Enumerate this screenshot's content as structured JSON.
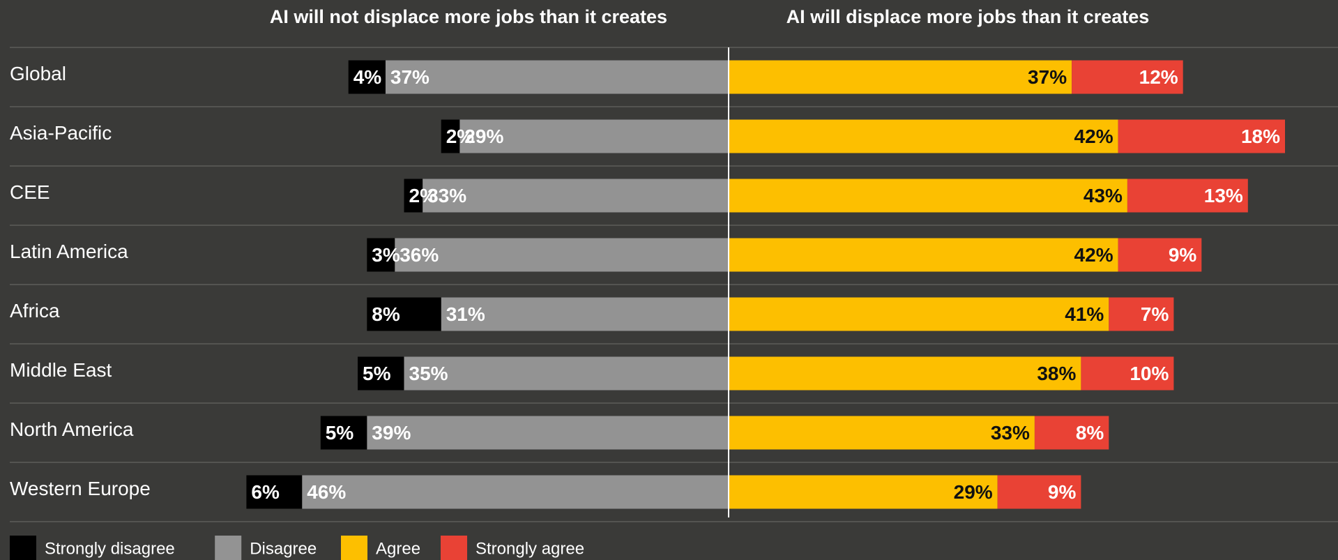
{
  "chart_data": {
    "type": "bar",
    "orientation": "horizontal-diverging",
    "group_headers": {
      "negative": "AI will not displace more jobs than it creates",
      "positive": "AI will displace more jobs than it creates"
    },
    "categories": [
      "Global",
      "Asia-Pacific",
      "CEE",
      "Latin America",
      "Africa",
      "Middle East",
      "North America",
      "Western Europe"
    ],
    "series": [
      {
        "name": "Strongly disagree",
        "side": "negative",
        "color": "#000000",
        "label_color": "#ffffff",
        "values": [
          4,
          2,
          2,
          3,
          8,
          5,
          5,
          6
        ],
        "labels": [
          "4%",
          "2%",
          "2%",
          "3%",
          "8%",
          "5%",
          "5%",
          "6%"
        ]
      },
      {
        "name": "Disagree",
        "side": "negative",
        "color": "#939393",
        "label_color": "#ffffff",
        "values": [
          37,
          29,
          33,
          36,
          31,
          35,
          39,
          46
        ],
        "labels": [
          "37%",
          "29%",
          "33%",
          "36%",
          "31%",
          "35%",
          "39%",
          "46%"
        ]
      },
      {
        "name": "Agree",
        "side": "positive",
        "color": "#fdbf00",
        "label_color": "#111111",
        "values": [
          37,
          42,
          43,
          42,
          41,
          38,
          33,
          29
        ],
        "labels": [
          "37%",
          "42%",
          "43%",
          "42%",
          "41%",
          "38%",
          "33%",
          "29%"
        ]
      },
      {
        "name": "Strongly agree",
        "side": "positive",
        "color": "#e94235",
        "label_color": "#ffffff",
        "values": [
          12,
          18,
          13,
          9,
          7,
          10,
          8,
          9
        ],
        "labels": [
          "12%",
          "18%",
          "13%",
          "9%",
          "7%",
          "10%",
          "8%",
          "9%"
        ]
      }
    ],
    "legend_position": "bottom-left",
    "grid": false
  },
  "colors": {
    "background": "#3a3a38",
    "separator": "#6e6e6a",
    "center_line": "#ffffff"
  }
}
